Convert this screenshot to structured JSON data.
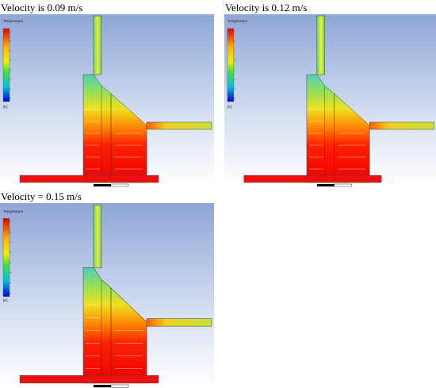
{
  "panels": [
    {
      "title": "Velocity is 0.09 m/s",
      "legend_title": "Temperature",
      "unit": "[K]"
    },
    {
      "title": "Velocity is 0.12 m/s",
      "legend_title": "Temperature",
      "unit": "[K]"
    },
    {
      "title": "Velocity = 0.15 m/s",
      "legend_title": "Temperature",
      "unit": "[K]"
    }
  ]
}
